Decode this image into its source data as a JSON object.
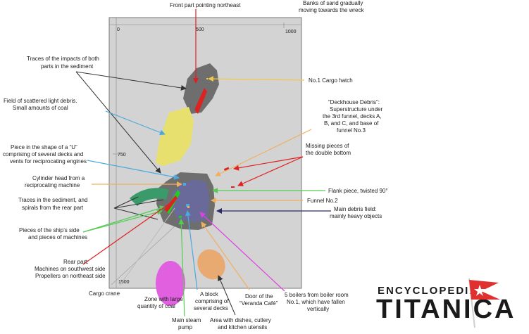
{
  "scale": {
    "top_left": "0",
    "top_mid": "500",
    "top_right": "1000",
    "left_mid": "750",
    "bottom_left": "1500"
  },
  "labels": {
    "front_part": "Front part pointing northeast",
    "sand_banks": [
      "Banks of sand gradually",
      "moving towards the wreck"
    ],
    "impacts": [
      "Traces of the impacts of both",
      "parts in the sediment"
    ],
    "cargo_hatch": "No.1 Cargo hatch",
    "light_debris": [
      "Field of scattered light debris.",
      "Small amounts of coal"
    ],
    "deckhouse_debris": [
      "“Deckhouse Debris”:",
      "Superstructure under",
      "the 3rd funnel, decks A,",
      "B, and C, and base of",
      "funnel No.3"
    ],
    "missing_pieces": [
      "Missing pieces of",
      "the double bottom"
    ],
    "u_piece": [
      "Piece in the shape of a “U”",
      "comprising of several decks and",
      "vents for reciprocating engines"
    ],
    "cylinder_head": [
      "Cylinder head from a",
      "reciprocating machine"
    ],
    "flank_piece": "Flank piece, twisted 90°",
    "sediment_spirals": [
      "Traces in the sediment, and",
      "spirals from the rear part"
    ],
    "funnel2": "Funnel No.2",
    "main_field": [
      "Main debris field:",
      "mainly heavy objects"
    ],
    "ship_side": [
      "Pieces of the ship’s side",
      "and pieces of machines"
    ],
    "rear_part": [
      "Rear part:",
      "Machines on southwest side",
      "Propellers on northeast side"
    ],
    "cargo_crane": "Cargo crane",
    "coal_zone": [
      "Zone with large",
      "quantity of coal"
    ],
    "steam_pump": [
      "Main steam",
      "pump"
    ],
    "block_decks": [
      "A block",
      "comprising of",
      "several decks"
    ],
    "veranda_door": [
      "Door of the",
      "“Veranda Café”"
    ],
    "dishes_area": [
      "Area with dishes, cutlery",
      "and kitchen utensils"
    ],
    "boilers": [
      "5 boilers from boiler room",
      "No.1, which have fallen",
      "vertically"
    ]
  },
  "watermark": {
    "line1": "ENCYCLOPEDIA",
    "line2": "TITANICA"
  },
  "colors": {
    "map_bg": "#d3d3d3",
    "front_section": "#6e6e6e",
    "rear_section": "#6a6a9a",
    "light_debris_field": "#e8e06e",
    "coal_zone": "#e060e0",
    "dishes_area": "#e8aa70",
    "red_marker": "#dd2222",
    "green_arc": "#3a9a6a",
    "pointer_yellow": "#f0c84a",
    "pointer_orange": "#f0b060",
    "pointer_red": "#e02020",
    "pointer_blue": "#4aaade",
    "pointer_green": "#55cc55",
    "pointer_navy": "#2a2a6a",
    "pointer_magenta": "#e040e0",
    "pointer_black": "#333333"
  },
  "icons": [
    "white-star-line-flag-icon"
  ]
}
